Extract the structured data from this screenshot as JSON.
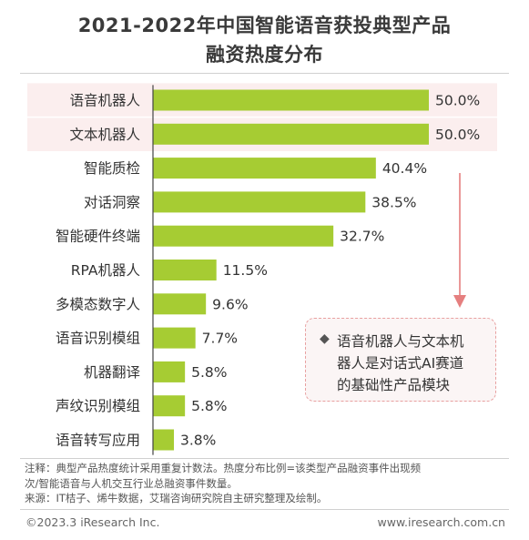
{
  "title_line1": "2021-2022年中国智能语音获投典型产品",
  "title_line2": "融资热度分布",
  "chart_data": {
    "type": "bar",
    "orientation": "horizontal",
    "categories": [
      "语音机器人",
      "文本机器人",
      "智能质检",
      "对话洞察",
      "智能硬件终端",
      "RPA机器人",
      "多模态数字人",
      "语音识别模组",
      "机器翻译",
      "声纹识别模组",
      "语音转写应用"
    ],
    "values": [
      50.0,
      50.0,
      40.4,
      38.5,
      32.7,
      11.5,
      9.6,
      7.7,
      5.8,
      5.8,
      3.8
    ],
    "value_labels": [
      "50.0%",
      "50.0%",
      "40.4%",
      "38.5%",
      "32.7%",
      "11.5%",
      "9.6%",
      "7.7%",
      "5.8%",
      "5.8%",
      "3.8%"
    ],
    "highlighted_categories": [
      "语音机器人",
      "文本机器人"
    ],
    "xlim": [
      0,
      50
    ],
    "grid": false,
    "title": "",
    "xlabel": "",
    "ylabel": ""
  },
  "callout": {
    "bullet": "◆",
    "lines": [
      "语音机器人与文本机",
      "器人是对话式AI赛道",
      "的基础性产品模块"
    ]
  },
  "notes": {
    "line1": "注释：典型产品热度统计采用重复计数法。热度分布比例=该类型产品融资事件出现频",
    "line2": "次/智能语音与人机交互行业总融资事件数量。",
    "line3": "来源：IT桔子、烯牛数据，艾瑞咨询研究院自主研究整理及绘制。"
  },
  "footer": {
    "copyright": "©2023.3 iResearch Inc.",
    "website": "www.iresearch.com.cn"
  },
  "colors": {
    "bar": "#a6cc33",
    "highlight_band": "#fbeeee",
    "arrow": "#e57f7f",
    "callout_border": "#e8a0a0",
    "text": "#333333"
  }
}
